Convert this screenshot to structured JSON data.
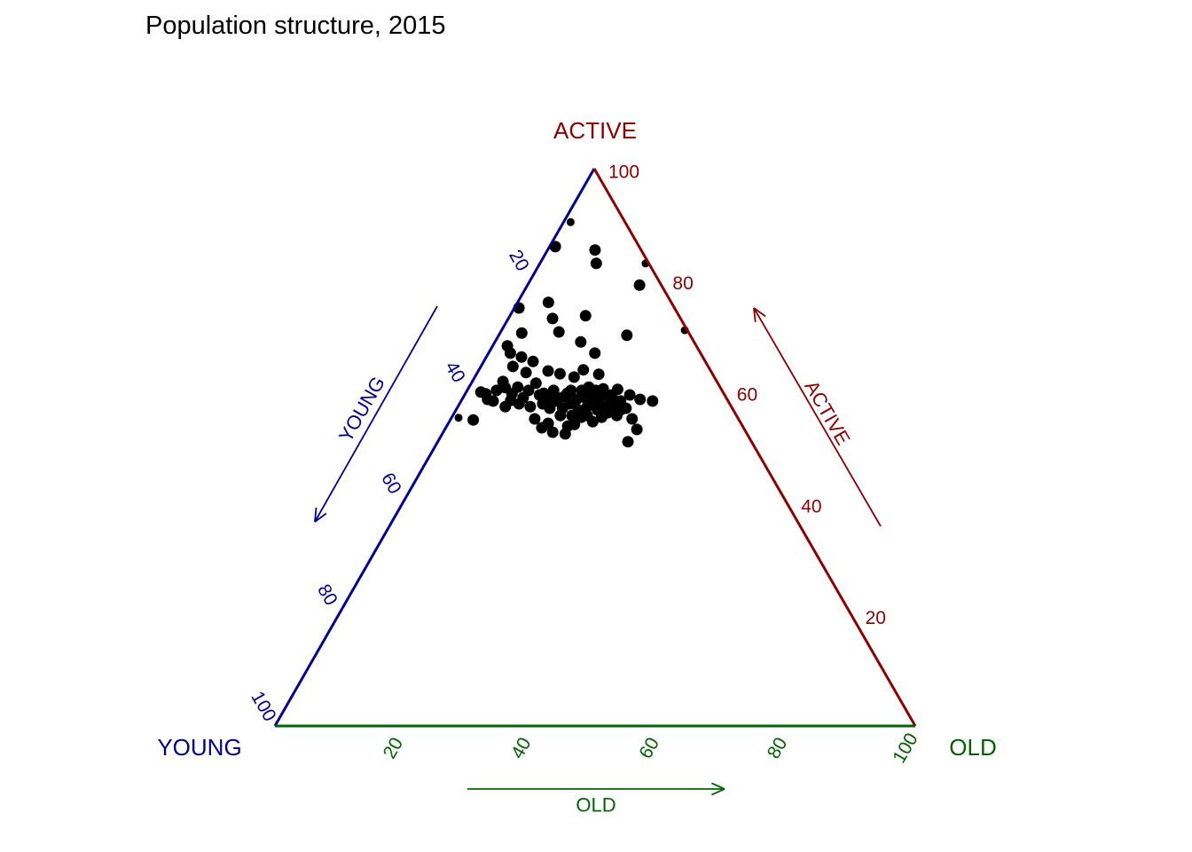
{
  "title": "Population structure, 2015",
  "colors": {
    "young_axis": "#00008B",
    "active_axis": "#8B0000",
    "old_axis": "#006400",
    "point": "#000000",
    "title_text": "#000000",
    "background": "#FFFFFF"
  },
  "chart_data": {
    "type": "scatter",
    "subtype": "ternary",
    "title": "Population structure, 2015",
    "axis_range": [
      0,
      100
    ],
    "grid": false,
    "legend": "none",
    "axes": {
      "left": {
        "corner_label": "YOUNG",
        "arrow_label": "YOUNG",
        "ticks": [
          20,
          40,
          60,
          80,
          100
        ],
        "color": "#00008B",
        "arrow_direction": "toward-bottom-left"
      },
      "right": {
        "corner_label": "ACTIVE",
        "arrow_label": "ACTIVE",
        "ticks": [
          100,
          80,
          60,
          40,
          20
        ],
        "color": "#8B0000",
        "arrow_direction": "toward-apex"
      },
      "bottom": {
        "corner_label": "OLD",
        "arrow_label": "OLD",
        "ticks": [
          20,
          40,
          60,
          80,
          100
        ],
        "color": "#006400",
        "arrow_direction": "toward-right"
      }
    },
    "point_format": [
      "young_pct",
      "active_pct",
      "old_pct",
      "small_marker_flag"
    ],
    "points": [
      [
        8.5,
        90.4,
        1.1,
        1
      ],
      [
        13.1,
        86.0,
        0.9
      ],
      [
        7.2,
        85.4,
        7.4
      ],
      [
        8.2,
        83.0,
        8.8
      ],
      [
        0.5,
        83.0,
        16.5,
        1
      ],
      [
        3.4,
        79.1,
        17.5
      ],
      [
        24.3,
        75.0,
        0.7
      ],
      [
        19.2,
        76.0,
        4.8
      ],
      [
        14.6,
        73.6,
        11.8
      ],
      [
        20.0,
        73.1,
        6.9
      ],
      [
        26.1,
        70.5,
        3.4
      ],
      [
        20.2,
        70.7,
        9.1
      ],
      [
        17.7,
        68.9,
        13.4
      ],
      [
        9.9,
        70.1,
        20.0
      ],
      [
        0.4,
        71.0,
        28.6,
        1
      ],
      [
        29.5,
        68.2,
        2.3
      ],
      [
        29.7,
        66.9,
        3.4
      ],
      [
        28.3,
        66.2,
        5.5
      ],
      [
        26.9,
        65.4,
        7.7
      ],
      [
        16.5,
        66.9,
        16.6
      ],
      [
        30.5,
        64.5,
        5.0
      ],
      [
        29.0,
        63.4,
        7.6
      ],
      [
        25.4,
        63.7,
        10.9
      ],
      [
        23.8,
        63.2,
        13.0
      ],
      [
        19.8,
        63.9,
        16.3
      ],
      [
        17.8,
        63.1,
        19.1
      ],
      [
        21.9,
        62.6,
        15.5
      ],
      [
        33.4,
        61.8,
        4.8
      ],
      [
        28.4,
        61.5,
        10.1
      ],
      [
        35.2,
        60.2,
        4.6
      ],
      [
        37.8,
        59.9,
        2.3
      ],
      [
        33.1,
        59.6,
        7.3
      ],
      [
        31.7,
        58.9,
        9.4
      ],
      [
        28.1,
        59.7,
        12.2
      ],
      [
        26.6,
        59.4,
        14.0
      ],
      [
        24.4,
        59.7,
        15.9
      ],
      [
        16.2,
        60.4,
        23.4
      ],
      [
        14.8,
        59.4,
        25.8
      ],
      [
        13.6,
        58.6,
        27.8
      ],
      [
        11.8,
        58.3,
        29.9
      ],
      [
        17.6,
        56.7,
        25.7
      ],
      [
        31.8,
        55.1,
        13.1
      ],
      [
        30.1,
        54.3,
        15.6
      ],
      [
        27.3,
        53.8,
        18.9
      ],
      [
        41.5,
        54.9,
        3.6
      ],
      [
        43.6,
        55.3,
        1.1,
        1
      ],
      [
        33.9,
        58.4,
        7.7
      ],
      [
        31.5,
        53.5,
        15.0
      ],
      [
        30.2,
        52.7,
        17.1
      ],
      [
        28.4,
        52.4,
        19.2
      ],
      [
        26.1,
        54.1,
        19.8
      ],
      [
        23.0,
        54.6,
        22.4
      ],
      [
        21.2,
        55.4,
        23.4
      ],
      [
        16.6,
        55.1,
        28.3
      ],
      [
        16.8,
        53.2,
        30.0
      ],
      [
        19.3,
        51.0,
        29.7
      ],
      [
        29.2,
        57.8,
        13.0
      ],
      [
        28.5,
        57.0,
        14.5
      ],
      [
        26.7,
        58.3,
        15.0
      ],
      [
        26.5,
        57.0,
        16.5
      ],
      [
        25.0,
        57.8,
        17.2
      ],
      [
        23.5,
        58.6,
        17.9
      ],
      [
        24.2,
        56.7,
        19.1
      ],
      [
        22.0,
        58.9,
        19.1
      ],
      [
        22.5,
        57.3,
        20.2
      ],
      [
        20.5,
        59.6,
        19.9
      ],
      [
        20.9,
        58.3,
        20.8
      ],
      [
        19.8,
        58.9,
        21.3
      ],
      [
        20.0,
        57.3,
        22.7
      ],
      [
        18.4,
        59.4,
        22.2
      ],
      [
        18.4,
        58.3,
        23.3
      ],
      [
        18.5,
        57.0,
        24.5
      ],
      [
        24.4,
        55.4,
        20.2
      ],
      [
        25.7,
        55.7,
        18.6
      ],
      [
        27.5,
        55.7,
        16.8
      ],
      [
        31.4,
        57.3,
        11.3
      ],
      [
        32.9,
        57.8,
        9.3
      ],
      [
        35.3,
        57.3,
        7.4
      ],
      [
        37.4,
        58.6,
        4.0
      ],
      [
        36.7,
        58.3,
        5.0
      ],
      [
        30.2,
        60.2,
        9.6
      ],
      [
        31.6,
        60.8,
        7.6
      ],
      [
        33.6,
        60.7,
        5.7
      ],
      [
        37.2,
        59.6,
        3.2
      ],
      [
        28.9,
        59.4,
        11.7
      ],
      [
        28.2,
        58.6,
        13.2
      ],
      [
        26.3,
        60.2,
        13.5
      ],
      [
        25.2,
        59.1,
        15.7
      ],
      [
        23.6,
        60.2,
        16.2
      ],
      [
        21.9,
        60.2,
        17.9
      ],
      [
        20.5,
        60.8,
        18.7
      ],
      [
        19.7,
        60.2,
        20.1
      ],
      [
        18.4,
        60.5,
        21.1
      ],
      [
        17.6,
        59.4,
        23.0
      ],
      [
        16.8,
        58.3,
        24.9
      ],
      [
        16.6,
        57.0,
        26.4
      ],
      [
        18.7,
        55.7,
        25.6
      ],
      [
        19.9,
        56.2,
        23.9
      ],
      [
        21.2,
        56.7,
        22.1
      ],
      [
        23.3,
        55.7,
        21.0
      ]
    ]
  }
}
